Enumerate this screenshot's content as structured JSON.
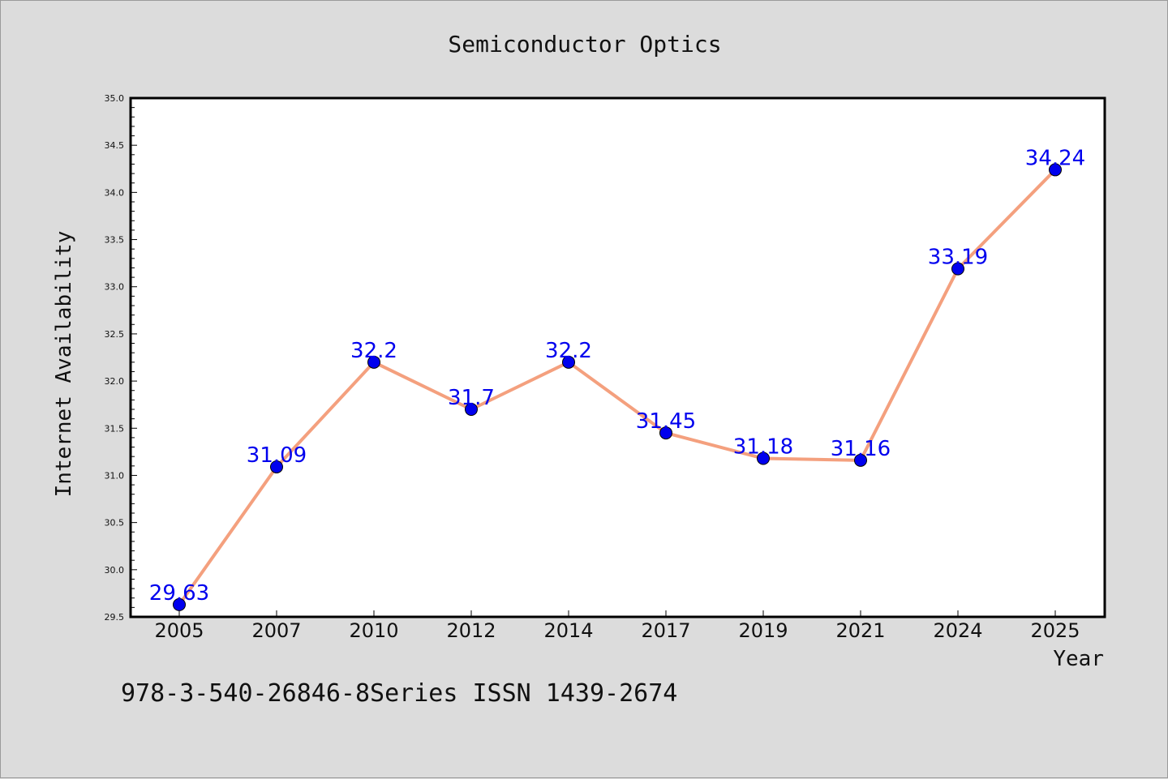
{
  "chart_data": {
    "type": "line",
    "title": "Semiconductor Optics",
    "xlabel": "Year",
    "ylabel": "Internet Availability",
    "categories": [
      "2005",
      "2007",
      "2010",
      "2012",
      "2014",
      "2017",
      "2019",
      "2021",
      "2024",
      "2025"
    ],
    "series": [
      {
        "values": [
          29.63,
          31.09,
          32.2,
          31.7,
          32.2,
          31.45,
          31.18,
          31.16,
          33.19,
          34.24
        ],
        "data_labels": [
          "29.63",
          "31.09",
          "32.2",
          "31.7",
          "32.2",
          "31.45",
          "31.18",
          "31.16",
          "33.19",
          "34.24"
        ],
        "line_color": "#f4a07e",
        "marker_color": "#0000ee",
        "label_color": "#0000ee"
      }
    ],
    "ylim": [
      29.5,
      35.0
    ],
    "yticks": [
      "29.5",
      "30.0",
      "30.5",
      "31.0",
      "31.5",
      "32.0",
      "32.5",
      "33.0",
      "33.5",
      "34.0",
      "34.5",
      "35.0"
    ],
    "grid": false,
    "legend": "none"
  },
  "footer": {
    "text": "978-3-540-26846-8Series ISSN 1439-2674"
  },
  "colors": {
    "background": "#dcdcdc",
    "plot_area": "#ffffff",
    "axis": "#000000"
  }
}
